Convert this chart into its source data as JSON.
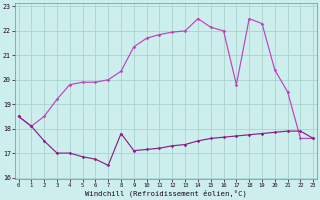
{
  "xlabel": "Windchill (Refroidissement éolien,°C)",
  "bg_color": "#cceeed",
  "grid_color": "#aad4d0",
  "line_upper_color": "#bb44bb",
  "line_lower_color": "#882288",
  "upper_x": [
    0,
    1,
    2,
    3,
    4,
    5,
    6,
    7,
    8,
    9,
    10,
    11,
    12,
    13,
    14,
    15,
    16,
    17,
    18,
    19,
    20,
    21,
    22,
    23
  ],
  "upper_y": [
    18.5,
    18.1,
    18.5,
    19.2,
    19.8,
    19.9,
    19.9,
    20.0,
    20.35,
    21.35,
    21.7,
    21.85,
    21.95,
    22.0,
    22.5,
    22.15,
    22.0,
    19.8,
    22.5,
    22.3,
    20.4,
    19.5,
    17.6,
    17.6
  ],
  "lower_x": [
    0,
    1,
    2,
    3,
    4,
    5,
    6,
    7,
    8,
    9,
    10,
    11,
    12,
    13,
    14,
    15,
    16,
    17,
    18,
    19,
    20,
    21,
    22,
    23
  ],
  "lower_y": [
    18.5,
    18.1,
    17.5,
    17.0,
    17.0,
    16.85,
    16.75,
    16.5,
    17.8,
    17.1,
    17.15,
    17.2,
    17.3,
    17.35,
    17.5,
    17.6,
    17.65,
    17.7,
    17.75,
    17.8,
    17.85,
    17.9,
    17.9,
    17.6
  ],
  "ylim": [
    16,
    23
  ],
  "xlim": [
    -0.3,
    23.3
  ],
  "yticks": [
    16,
    17,
    18,
    19,
    20,
    21,
    22,
    23
  ],
  "xticks": [
    0,
    1,
    2,
    3,
    4,
    5,
    6,
    7,
    8,
    9,
    10,
    11,
    12,
    13,
    14,
    15,
    16,
    17,
    18,
    19,
    20,
    21,
    22,
    23
  ]
}
